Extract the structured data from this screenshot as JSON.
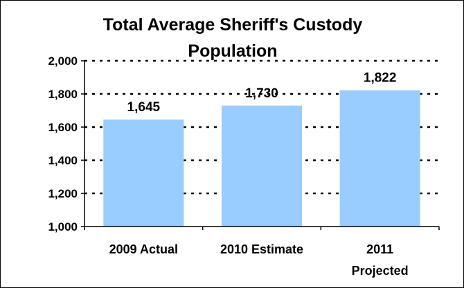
{
  "chart_data": {
    "type": "bar",
    "title_lines": [
      "Total Average Sheriff's Custody",
      "Population"
    ],
    "categories": [
      [
        "2009 Actual"
      ],
      [
        "2010 Estimate"
      ],
      [
        "2011",
        "Projected"
      ]
    ],
    "values": [
      1645,
      1730,
      1822
    ],
    "value_labels": [
      "1,645",
      "1,730",
      "1,822"
    ],
    "ylim": [
      1000,
      2000
    ],
    "yticks": [
      1000,
      1200,
      1400,
      1600,
      1800,
      2000
    ],
    "ytick_labels": [
      "1,000",
      "1,200",
      "1,400",
      "1,600",
      "1,800",
      "2,000"
    ],
    "grid": true,
    "bar_color": "#99ccff",
    "xlabel": "",
    "ylabel": ""
  }
}
